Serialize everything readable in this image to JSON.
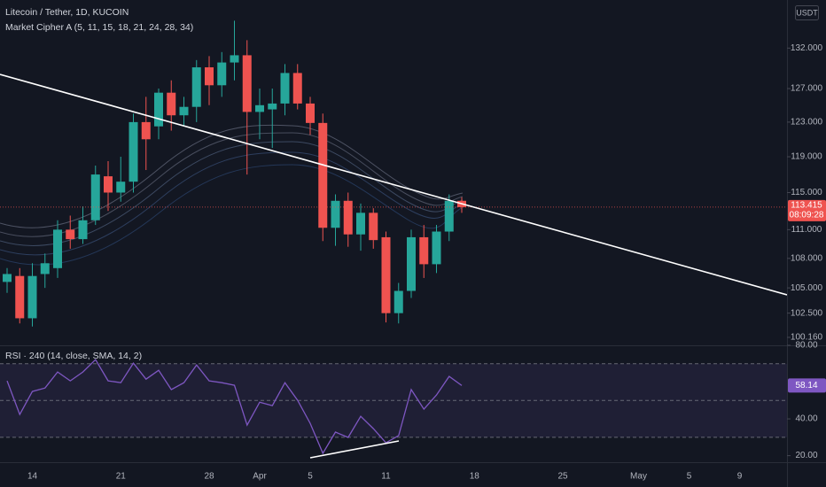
{
  "chart_data": [
    {
      "type": "candlestick",
      "title": "Litecoin / Tether, 1D, KUCOIN",
      "subtitle": "Market Cipher A (5, 11, 15, 18, 21, 24, 28, 34)",
      "currency": "USDT",
      "countdown": "08:09:28",
      "categories": [
        null,
        null,
        "14",
        null,
        null,
        null,
        null,
        null,
        null,
        "21",
        null,
        null,
        null,
        null,
        null,
        null,
        "28",
        null,
        null,
        null,
        "Apr",
        null,
        null,
        null,
        "5",
        null,
        null,
        null,
        null,
        null,
        "11",
        null,
        null,
        null,
        null,
        null,
        null,
        "18",
        null,
        null,
        null,
        null,
        null,
        null,
        "25",
        null,
        null,
        null,
        null,
        null,
        "May",
        null,
        null,
        null,
        "5",
        null,
        null,
        null,
        "9",
        null,
        null,
        null
      ],
      "open": [
        105.6,
        106.2,
        102.0,
        106.4,
        107.0,
        111.0,
        110.0,
        112.0,
        116.8,
        115.0,
        116.2,
        123.0,
        122.5,
        126.5,
        123.8,
        124.8,
        129.6,
        127.4,
        130.2,
        131.1,
        124.2,
        124.5,
        125.2,
        128.9,
        125.2,
        122.9,
        111.2,
        114.1,
        110.5,
        112.8,
        110.2,
        102.5,
        104.7,
        110.2,
        107.4,
        110.8,
        114.1,
        null,
        null,
        null,
        null,
        null,
        null,
        null,
        null,
        null,
        null,
        null,
        null,
        null,
        null,
        null,
        null,
        null,
        null,
        null,
        null,
        null,
        null,
        null,
        null,
        null
      ],
      "high": [
        107.0,
        107.0,
        107.5,
        108.5,
        112.0,
        112.5,
        113.5,
        118.0,
        118.5,
        119.0,
        124.0,
        126.0,
        127.0,
        128.0,
        126.0,
        130.5,
        131.0,
        131.5,
        135.5,
        133.0,
        127.0,
        127.0,
        130.0,
        130.0,
        126.0,
        124.0,
        114.8,
        115.0,
        113.8,
        113.3,
        110.8,
        105.5,
        111.0,
        111.5,
        111.5,
        114.8,
        114.5,
        null,
        null,
        null,
        null,
        null,
        null,
        null,
        null,
        null,
        null,
        null,
        null,
        null,
        null,
        null,
        null,
        null,
        null,
        null,
        null,
        null,
        null,
        null,
        null,
        null
      ],
      "low": [
        104.5,
        101.5,
        101.2,
        105.0,
        106.0,
        109.0,
        109.5,
        111.5,
        113.0,
        114.0,
        115.0,
        117.5,
        121.0,
        122.0,
        122.5,
        123.0,
        125.0,
        126.0,
        128.0,
        117.0,
        121.0,
        120.0,
        123.8,
        124.5,
        121.5,
        109.8,
        109.3,
        109.2,
        108.8,
        109.0,
        101.6,
        101.5,
        104.0,
        106.0,
        106.5,
        109.8,
        112.8,
        null,
        null,
        null,
        null,
        null,
        null,
        null,
        null,
        null,
        null,
        null,
        null,
        null,
        null,
        null,
        null,
        null,
        null,
        null,
        null,
        null,
        null,
        null,
        null,
        null
      ],
      "close": [
        106.4,
        102.0,
        106.2,
        107.5,
        111.0,
        110.0,
        112.0,
        117.0,
        115.0,
        116.2,
        123.0,
        121.0,
        126.5,
        123.8,
        124.8,
        129.6,
        127.4,
        130.2,
        131.1,
        124.2,
        125.0,
        125.2,
        128.9,
        125.2,
        122.9,
        111.2,
        114.1,
        110.5,
        112.8,
        109.9,
        102.5,
        104.7,
        110.2,
        107.4,
        110.8,
        114.1,
        113.415,
        null,
        null,
        null,
        null,
        null,
        null,
        null,
        null,
        null,
        null,
        null,
        null,
        null,
        null,
        null,
        null,
        null,
        null,
        null,
        null,
        null,
        null,
        null,
        null,
        null
      ],
      "up_color": "#26a69a",
      "down_color": "#ef5350",
      "log": true,
      "ylim": [
        99.4,
        138.2
      ],
      "yticks": [
        {
          "value": 100.16,
          "label": "100.160"
        },
        {
          "value": 102.5,
          "label": "102.500"
        },
        {
          "value": 105,
          "label": "105.000"
        },
        {
          "value": 108,
          "label": "108.000"
        },
        {
          "value": 111,
          "label": "111.000"
        },
        {
          "value": 115,
          "label": "115.000"
        },
        {
          "value": 119,
          "label": "119.000"
        },
        {
          "value": 123,
          "label": "123.000"
        },
        {
          "value": 127,
          "label": "127.000"
        },
        {
          "value": 132,
          "label": "132.000"
        }
      ]
    },
    {
      "type": "line",
      "title": "RSI · 240 (14, close, SMA, 14, 2)",
      "color": "#7e57c2",
      "values": [
        60.7,
        42.4,
        54.9,
        56.8,
        65.5,
        60.7,
        65.5,
        72.2,
        60.7,
        59.7,
        70.3,
        61.6,
        66.4,
        55.9,
        59.7,
        69.3,
        60.7,
        59.7,
        58.3,
        36.6,
        49.1,
        47.2,
        59.7,
        50.1,
        37.6,
        21.3,
        32.8,
        29.9,
        41.4,
        34.7,
        27.0,
        30.9,
        55.9,
        45.3,
        53.0,
        63.1,
        58.14,
        null,
        null,
        null,
        null,
        null,
        null,
        null,
        null,
        null,
        null,
        null,
        null,
        null,
        null,
        null,
        null,
        null,
        null,
        null,
        null,
        null,
        null,
        null,
        null,
        null
      ],
      "ylim": [
        17.4,
        80
      ],
      "yticks": [
        {
          "value": 20,
          "label": "20.00"
        },
        {
          "value": 40,
          "label": "40.00"
        },
        {
          "value": 80,
          "label": "80.00"
        }
      ],
      "levels": [
        70,
        50,
        30
      ]
    }
  ]
}
